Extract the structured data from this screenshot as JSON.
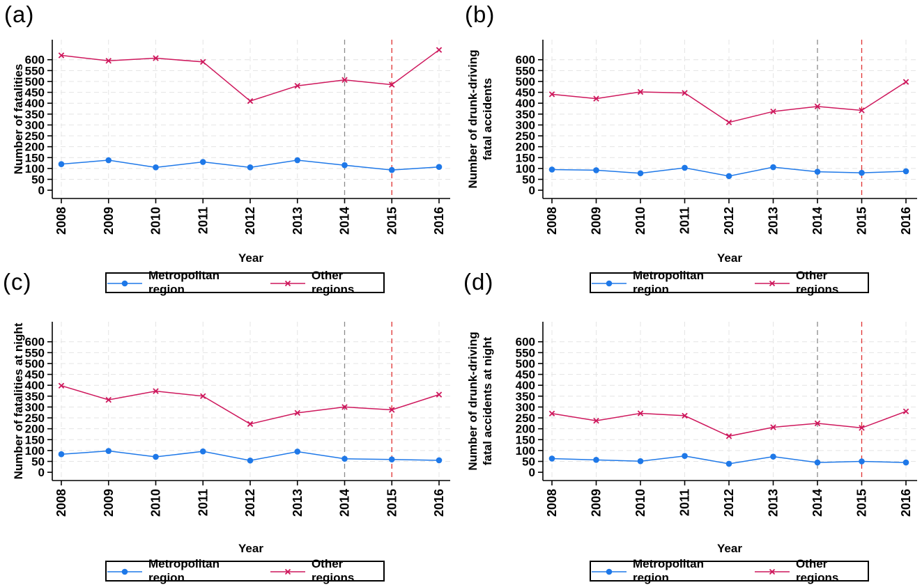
{
  "figure_xlabel": "Year",
  "colors": {
    "metropolitan": "#1E78E8",
    "other": "#CE175C",
    "vline_2014": "#8A8A8A",
    "vline_2015": "#E03131",
    "grid": "#E4E4E4",
    "axis": "#000000"
  },
  "legend": {
    "metropolitan_label": "Metropolitan region",
    "other_label": "Other regions"
  },
  "chart_data": [
    {
      "type": "line",
      "panel_label": "(a)",
      "ylabel": "Number of fatalities",
      "ylabel_lines": [
        "Number of fatalities"
      ],
      "xlabel": "Year",
      "x": [
        2008,
        2009,
        2010,
        2011,
        2012,
        2013,
        2014,
        2015,
        2016
      ],
      "yticks": [
        0,
        50,
        100,
        150,
        200,
        250,
        300,
        350,
        400,
        450,
        500,
        550,
        600
      ],
      "ylim": [
        0,
        650
      ],
      "grid": true,
      "legend_position": "bottom",
      "vlines": [
        {
          "x": 2014,
          "style": "dashed",
          "color_key": "vline_2014"
        },
        {
          "x": 2015,
          "style": "dashed",
          "color_key": "vline_2015"
        }
      ],
      "series": [
        {
          "name": "Metropolitan region",
          "marker": "circle",
          "color_key": "metropolitan",
          "values": [
            120,
            138,
            105,
            130,
            105,
            138,
            115,
            93,
            107
          ]
        },
        {
          "name": "Other regions",
          "marker": "x",
          "color_key": "other",
          "values": [
            620,
            595,
            607,
            590,
            410,
            480,
            507,
            485,
            645
          ]
        }
      ]
    },
    {
      "type": "line",
      "panel_label": "(b)",
      "ylabel": "Number of drunk-driving fatal accidents",
      "ylabel_lines": [
        "Number of drunk-driving",
        "fatal accidents"
      ],
      "xlabel": "Year",
      "x": [
        2008,
        2009,
        2010,
        2011,
        2012,
        2013,
        2014,
        2015,
        2016
      ],
      "yticks": [
        0,
        50,
        100,
        150,
        200,
        250,
        300,
        350,
        400,
        450,
        500,
        550,
        600
      ],
      "ylim": [
        0,
        650
      ],
      "grid": true,
      "legend_position": "bottom",
      "vlines": [
        {
          "x": 2014,
          "style": "dashed",
          "color_key": "vline_2014"
        },
        {
          "x": 2015,
          "style": "dashed",
          "color_key": "vline_2015"
        }
      ],
      "series": [
        {
          "name": "Metropolitan region",
          "marker": "circle",
          "color_key": "metropolitan",
          "values": [
            95,
            92,
            78,
            103,
            65,
            106,
            85,
            80,
            87
          ]
        },
        {
          "name": "Other regions",
          "marker": "x",
          "color_key": "other",
          "values": [
            441,
            421,
            452,
            447,
            312,
            362,
            385,
            367,
            498
          ]
        }
      ]
    },
    {
      "type": "line",
      "panel_label": "(c)",
      "ylabel": "Number of fatalities at night",
      "ylabel_lines": [
        "Number of fatalities at night"
      ],
      "xlabel": "Year",
      "x": [
        2008,
        2009,
        2010,
        2011,
        2012,
        2013,
        2014,
        2015,
        2016
      ],
      "yticks": [
        0,
        50,
        100,
        150,
        200,
        250,
        300,
        350,
        400,
        450,
        500,
        550,
        600
      ],
      "ylim": [
        0,
        650
      ],
      "grid": true,
      "legend_position": "bottom",
      "vlines": [
        {
          "x": 2014,
          "style": "dashed",
          "color_key": "vline_2014"
        },
        {
          "x": 2015,
          "style": "dashed",
          "color_key": "vline_2015"
        }
      ],
      "series": [
        {
          "name": "Metropolitan region",
          "marker": "circle",
          "color_key": "metropolitan",
          "values": [
            83,
            98,
            71,
            96,
            54,
            95,
            62,
            59,
            55
          ]
        },
        {
          "name": "Other regions",
          "marker": "x",
          "color_key": "other",
          "values": [
            398,
            333,
            373,
            350,
            222,
            273,
            300,
            287,
            357
          ]
        }
      ]
    },
    {
      "type": "line",
      "panel_label": "(d)",
      "ylabel": "Number of drunk-driving fatal accidents at night",
      "ylabel_lines": [
        "Number of drunk-driving",
        "fatal accidents at night"
      ],
      "xlabel": "Year",
      "x": [
        2008,
        2009,
        2010,
        2011,
        2012,
        2013,
        2014,
        2015,
        2016
      ],
      "yticks": [
        0,
        50,
        100,
        150,
        200,
        250,
        300,
        350,
        400,
        450,
        500,
        550,
        600
      ],
      "ylim": [
        0,
        650
      ],
      "grid": true,
      "legend_position": "bottom",
      "vlines": [
        {
          "x": 2014,
          "style": "dashed",
          "color_key": "vline_2014"
        },
        {
          "x": 2015,
          "style": "dashed",
          "color_key": "vline_2015"
        }
      ],
      "series": [
        {
          "name": "Metropolitan region",
          "marker": "circle",
          "color_key": "metropolitan",
          "values": [
            63,
            57,
            51,
            75,
            39,
            72,
            45,
            50,
            45
          ]
        },
        {
          "name": "Other regions",
          "marker": "x",
          "color_key": "other",
          "values": [
            270,
            237,
            271,
            260,
            166,
            207,
            225,
            204,
            280
          ]
        }
      ]
    }
  ]
}
